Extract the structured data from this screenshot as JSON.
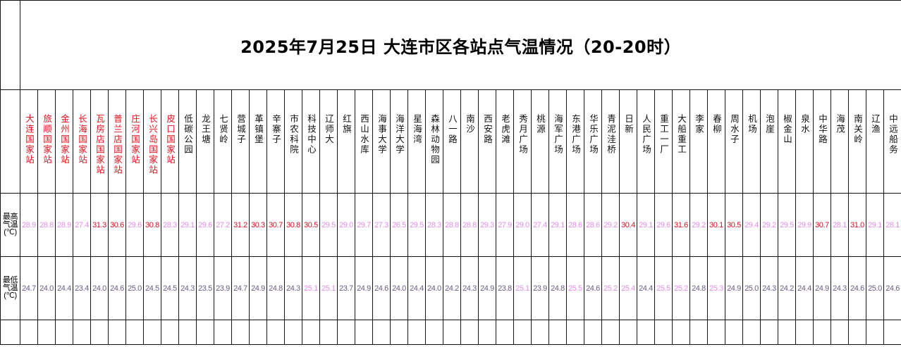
{
  "title": "2025年7月25日 大连市区各站点气温情况（20-20时）",
  "row_labels": {
    "max": [
      "最高",
      "气温",
      "(℃)"
    ],
    "min": [
      "最低",
      "气温",
      "(℃)"
    ]
  },
  "colors": {
    "national_station": "#e0141e",
    "station": "#111111",
    "high_max": "#d5102a",
    "normal_max": "#e38ce8",
    "high_min": "#e38ce8",
    "normal_min": "#6b5b85"
  },
  "stations": [
    {
      "name": "大连国家站",
      "national": true,
      "max": "28.9",
      "min": "24.7"
    },
    {
      "name": "旅顺国家站",
      "national": true,
      "max": "28.8",
      "min": "24.0"
    },
    {
      "name": "金州国家站",
      "national": true,
      "max": "28.9",
      "min": "24.4"
    },
    {
      "name": "长海国家站",
      "national": true,
      "max": "27.4",
      "min": "23.4"
    },
    {
      "name": "瓦房店国家站",
      "national": true,
      "max": "31.3",
      "min": "24.0"
    },
    {
      "name": "普兰店国家站",
      "national": true,
      "max": "30.6",
      "min": "24.6"
    },
    {
      "name": "庄河国家站",
      "national": true,
      "max": "29.6",
      "min": "25.0"
    },
    {
      "name": "长兴岛国家站",
      "national": true,
      "max": "30.8",
      "min": "24.5"
    },
    {
      "name": "皮口国家站",
      "national": true,
      "max": "28.3",
      "min": "24.5"
    },
    {
      "name": "低碳公园",
      "national": false,
      "max": "29.1",
      "min": "24.3"
    },
    {
      "name": "龙王塘",
      "national": false,
      "max": "29.6",
      "min": "23.5"
    },
    {
      "name": "七贤岭",
      "national": false,
      "max": "27.2",
      "min": "23.9"
    },
    {
      "name": "营城子",
      "national": false,
      "max": "31.2",
      "min": "24.7"
    },
    {
      "name": "革镇堡",
      "national": false,
      "max": "30.3",
      "min": "24.9"
    },
    {
      "name": "辛寨子",
      "national": false,
      "max": "30.7",
      "min": "24.8"
    },
    {
      "name": "市农科院",
      "national": false,
      "max": "30.8",
      "min": "24.3"
    },
    {
      "name": "科技中心",
      "national": false,
      "max": "30.5",
      "min": "25.1"
    },
    {
      "name": "辽师大",
      "national": false,
      "max": "29.5",
      "min": "25.1"
    },
    {
      "name": "红旗",
      "national": false,
      "max": "29.0",
      "min": "23.7"
    },
    {
      "name": "西山水库",
      "national": false,
      "max": "29.7",
      "min": "24.9"
    },
    {
      "name": "海事大学",
      "national": false,
      "max": "27.3",
      "min": "24.6"
    },
    {
      "name": "海洋大学",
      "national": false,
      "max": "26.5",
      "min": "24.0"
    },
    {
      "name": "星海湾",
      "national": false,
      "max": "29.5",
      "min": "24.4"
    },
    {
      "name": "森林动物园",
      "national": false,
      "max": "28.3",
      "min": "24.0"
    },
    {
      "name": "八一路",
      "national": false,
      "max": "28.8",
      "min": "24.2"
    },
    {
      "name": "南沙",
      "national": false,
      "max": "28.8",
      "min": "24.3"
    },
    {
      "name": "西安路",
      "national": false,
      "max": "29.3",
      "min": "24.9"
    },
    {
      "name": "老虎滩",
      "national": false,
      "max": "27.9",
      "min": "23.8"
    },
    {
      "name": "秀月广场",
      "national": false,
      "max": "29.0",
      "min": "25.1"
    },
    {
      "name": "桃源",
      "national": false,
      "max": "27.4",
      "min": "23.9"
    },
    {
      "name": "海军广场",
      "national": false,
      "max": "29.1",
      "min": "24.8"
    },
    {
      "name": "东港广场",
      "national": false,
      "max": "28.6",
      "min": "25.5"
    },
    {
      "name": "华乐广场",
      "national": false,
      "max": "28.6",
      "min": "24.6"
    },
    {
      "name": "青泥洼桥",
      "national": false,
      "max": "29.2",
      "min": "25.2"
    },
    {
      "name": "日新",
      "national": false,
      "max": "30.4",
      "min": "25.4"
    },
    {
      "name": "人民广场",
      "national": false,
      "max": "29.1",
      "min": "24.4"
    },
    {
      "name": "重工一厂",
      "national": false,
      "max": "29.6",
      "min": "25.5"
    },
    {
      "name": "大船重工",
      "national": false,
      "max": "31.6",
      "min": "25.2"
    },
    {
      "name": "李家",
      "national": false,
      "max": "29.2",
      "min": "24.8"
    },
    {
      "name": "春柳",
      "national": false,
      "max": "30.1",
      "min": "25.3"
    },
    {
      "name": "周水子",
      "national": false,
      "max": "30.5",
      "min": "24.9"
    },
    {
      "name": "机场",
      "national": false,
      "max": "29.4",
      "min": "25.0"
    },
    {
      "name": "泡崖",
      "national": false,
      "max": "29.2",
      "min": "24.3"
    },
    {
      "name": "椒金山",
      "national": false,
      "max": "29.5",
      "min": "24.2"
    },
    {
      "name": "泉水",
      "national": false,
      "max": "29.9",
      "min": "24.4"
    },
    {
      "name": "中华路",
      "national": false,
      "max": "30.7",
      "min": "24.9"
    },
    {
      "name": "海茂",
      "national": false,
      "max": "28.1",
      "min": "24.3"
    },
    {
      "name": "南关岭",
      "national": false,
      "max": "31.0",
      "min": "24.6"
    },
    {
      "name": "辽渔",
      "national": false,
      "max": "29.1",
      "min": "25.0"
    },
    {
      "name": "中远船务",
      "national": false,
      "max": "28.1",
      "min": "24.6"
    }
  ]
}
